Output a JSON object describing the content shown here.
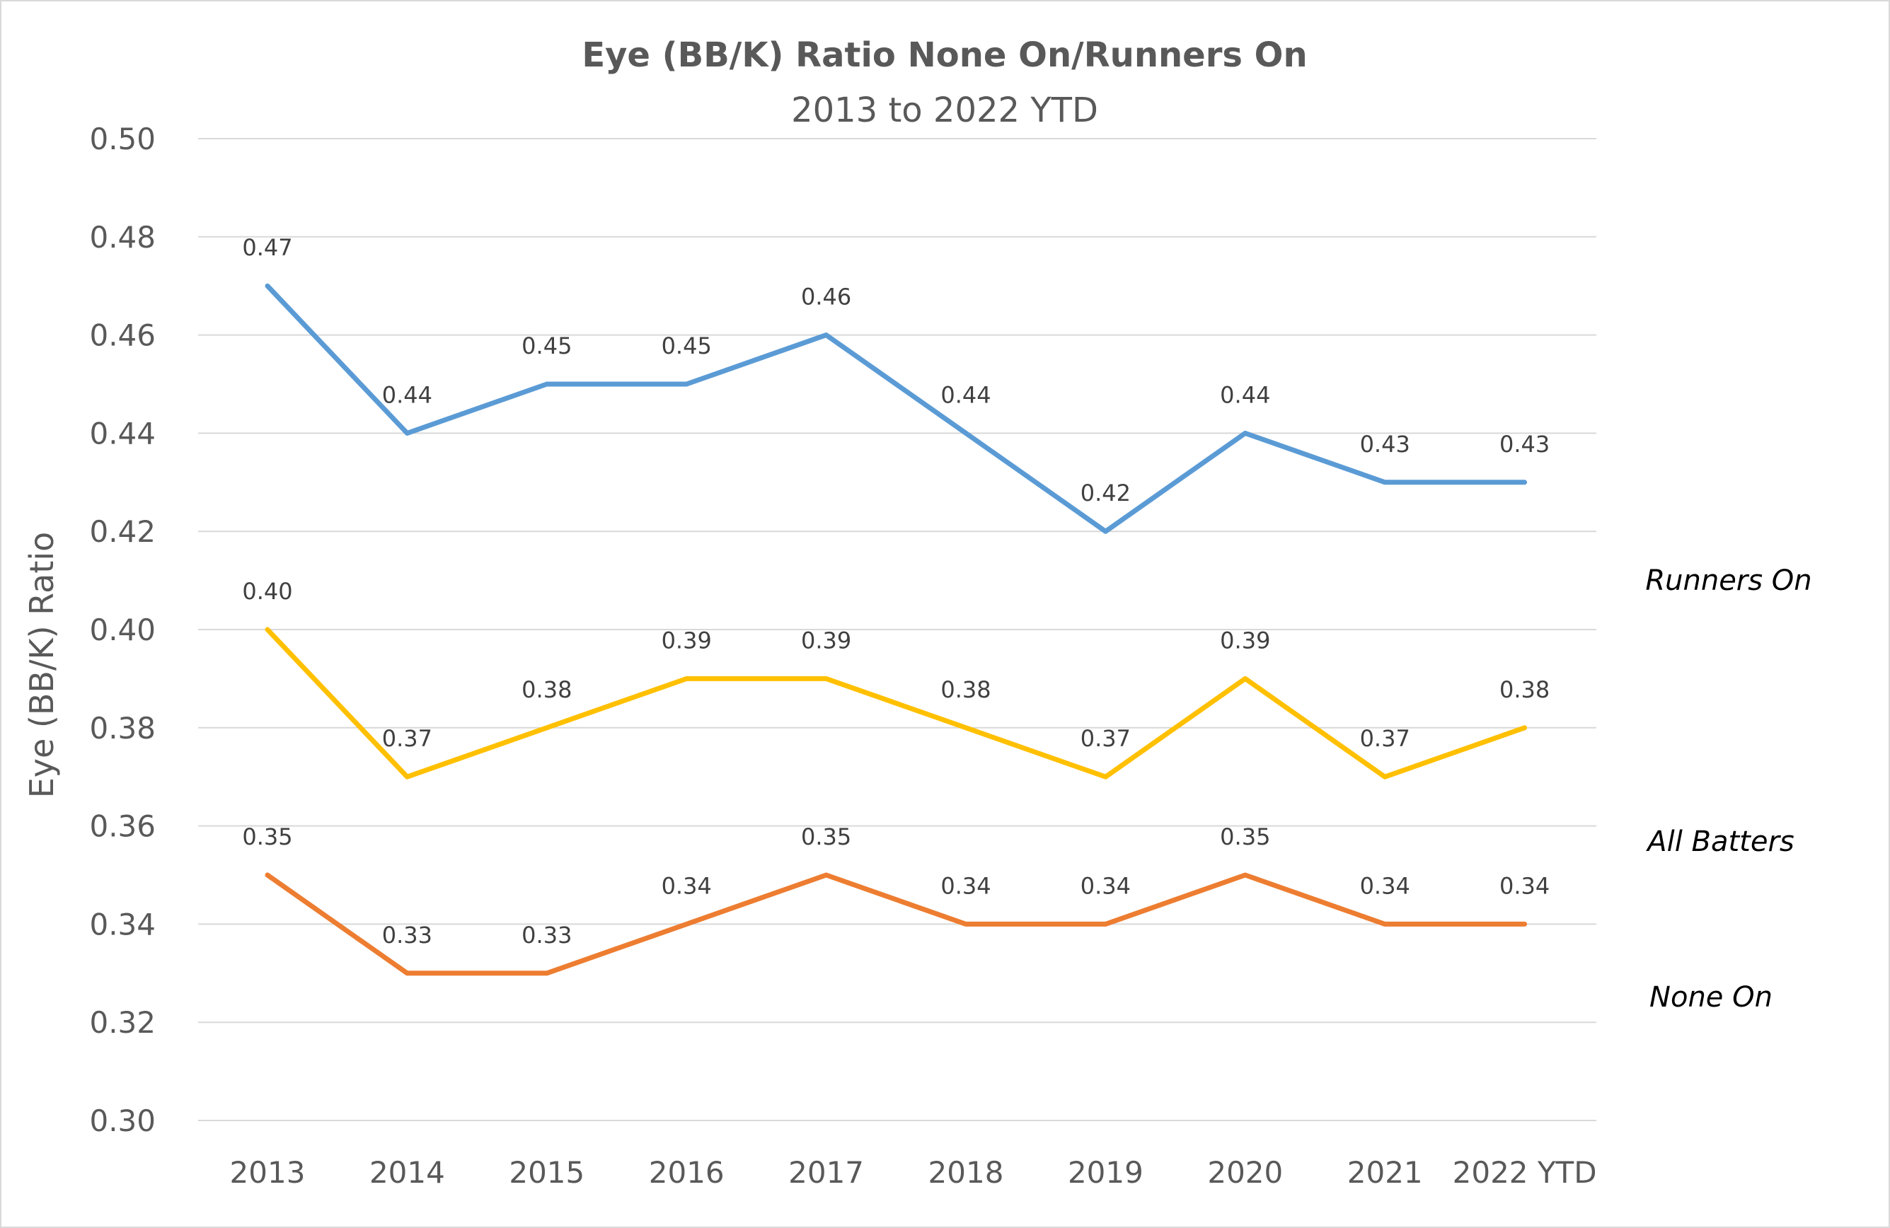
{
  "chart_data": {
    "type": "line",
    "title": "Eye (BB/K) Ratio None On/Runners On",
    "subtitle": "2013 to 2022 YTD",
    "xlabel": "",
    "ylabel": "Eye (BB/K) Ratio",
    "categories": [
      "2013",
      "2014",
      "2015",
      "2016",
      "2017",
      "2018",
      "2019",
      "2020",
      "2021",
      "2022 YTD"
    ],
    "ylim": [
      0.3,
      0.5
    ],
    "yticks": [
      "0.30",
      "0.32",
      "0.34",
      "0.36",
      "0.38",
      "0.40",
      "0.42",
      "0.44",
      "0.46",
      "0.48",
      "0.50"
    ],
    "grid": true,
    "legend": "series labels at right of plot",
    "series": [
      {
        "name": "Runners On",
        "color": "#5b9bd5",
        "values": [
          0.47,
          0.44,
          0.45,
          0.45,
          0.46,
          0.44,
          0.42,
          0.44,
          0.43,
          0.43
        ],
        "labels": [
          "0.47",
          "0.44",
          "0.45",
          "0.45",
          "0.46",
          "0.44",
          "0.42",
          "0.44",
          "0.43",
          "0.43"
        ]
      },
      {
        "name": "All Batters",
        "color": "#ffc000",
        "values": [
          0.4,
          0.37,
          0.38,
          0.39,
          0.39,
          0.38,
          0.37,
          0.39,
          0.37,
          0.38
        ],
        "labels": [
          "0.40",
          "0.37",
          "0.38",
          "0.39",
          "0.39",
          "0.38",
          "0.37",
          "0.39",
          "0.37",
          "0.38"
        ]
      },
      {
        "name": "None On",
        "color": "#ed7d31",
        "values": [
          0.35,
          0.33,
          0.33,
          0.34,
          0.35,
          0.34,
          0.34,
          0.35,
          0.34,
          0.34
        ],
        "labels": [
          "0.35",
          "0.33",
          "0.33",
          "0.34",
          "0.35",
          "0.34",
          "0.34",
          "0.35",
          "0.34",
          "0.34"
        ]
      }
    ]
  }
}
